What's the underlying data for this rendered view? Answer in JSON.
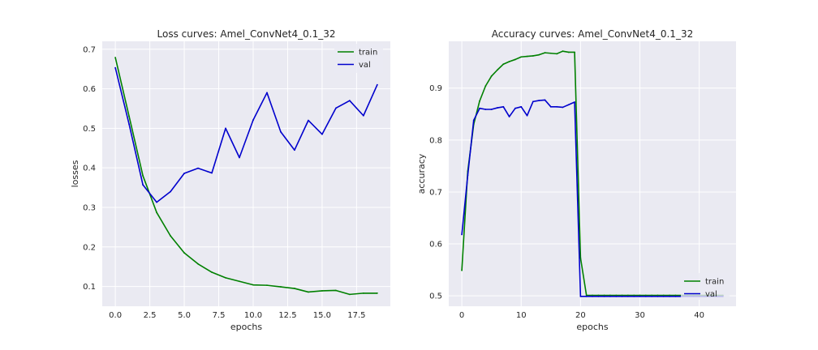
{
  "chart_data": [
    {
      "type": "line",
      "title": "Loss curves: Amel_ConvNet4_0.1_32",
      "xlabel": "epochs",
      "ylabel": "losses",
      "xlim": [
        -0.95,
        19.95
      ],
      "ylim": [
        0.05,
        0.72
      ],
      "xticks": [
        0,
        2.5,
        5,
        7.5,
        10,
        12.5,
        15,
        17.5
      ],
      "xtick_labels": [
        "0.0",
        "2.5",
        "5.0",
        "7.5",
        "10.0",
        "12.5",
        "15.0",
        "17.5"
      ],
      "yticks": [
        0.1,
        0.2,
        0.3,
        0.4,
        0.5,
        0.6,
        0.7
      ],
      "ytick_labels": [
        "0.1",
        "0.2",
        "0.3",
        "0.4",
        "0.5",
        "0.6",
        "0.7"
      ],
      "grid": true,
      "legend_position": "top-right",
      "series": [
        {
          "name": "train",
          "color": "#008000",
          "x": [
            0,
            1,
            2,
            3,
            4,
            5,
            6,
            7,
            8,
            9,
            10,
            11,
            12,
            13,
            14,
            15,
            16,
            17,
            18,
            19
          ],
          "y": [
            0.679,
            0.53,
            0.38,
            0.287,
            0.228,
            0.185,
            0.157,
            0.136,
            0.122,
            0.113,
            0.104,
            0.103,
            0.099,
            0.095,
            0.086,
            0.089,
            0.09,
            0.08,
            0.083,
            0.083
          ]
        },
        {
          "name": "val",
          "color": "#0000cd",
          "x": [
            0,
            1,
            2,
            3,
            4,
            5,
            6,
            7,
            8,
            9,
            10,
            11,
            12,
            13,
            14,
            15,
            16,
            17,
            18,
            19
          ],
          "y": [
            0.653,
            0.51,
            0.357,
            0.313,
            0.34,
            0.386,
            0.399,
            0.387,
            0.5,
            0.426,
            0.521,
            0.59,
            0.491,
            0.445,
            0.52,
            0.485,
            0.551,
            0.57,
            0.532,
            0.61
          ]
        }
      ]
    },
    {
      "type": "line",
      "title": "Accuracy curves: Amel_ConvNet4_0.1_32",
      "xlabel": "epochs",
      "ylabel": "accuracy",
      "xlim": [
        -2.2,
        46.2
      ],
      "ylim": [
        0.48,
        0.99
      ],
      "xticks": [
        0,
        10,
        20,
        30,
        40
      ],
      "xtick_labels": [
        "0",
        "10",
        "20",
        "30",
        "40"
      ],
      "yticks": [
        0.5,
        0.6,
        0.7,
        0.8,
        0.9
      ],
      "ytick_labels": [
        "0.5",
        "0.6",
        "0.7",
        "0.8",
        "0.9"
      ],
      "grid": true,
      "legend_position": "lower-right",
      "series": [
        {
          "name": "train",
          "color": "#008000",
          "x": [
            0,
            1,
            2,
            3,
            4,
            5,
            6,
            7,
            8,
            9,
            10,
            11,
            12,
            13,
            14,
            15,
            16,
            17,
            18,
            19,
            20,
            21,
            22,
            23,
            24,
            25,
            26,
            27,
            28,
            29,
            30,
            31,
            32,
            33,
            34,
            35,
            36,
            37,
            38,
            39,
            40,
            41,
            42,
            43,
            44
          ],
          "y": [
            0.549,
            0.74,
            0.83,
            0.875,
            0.904,
            0.923,
            0.935,
            0.946,
            0.951,
            0.955,
            0.96,
            0.961,
            0.962,
            0.964,
            0.968,
            0.967,
            0.966,
            0.971,
            0.969,
            0.969,
            0.573,
            0.501,
            0.501,
            0.501,
            0.501,
            0.501,
            0.501,
            0.501,
            0.501,
            0.501,
            0.501,
            0.501,
            0.501,
            0.501,
            0.501,
            0.501,
            0.501,
            0.501,
            0.501,
            0.501,
            0.501,
            0.501,
            0.501,
            0.501,
            0.501
          ]
        },
        {
          "name": "val",
          "color": "#0000cd",
          "x": [
            0,
            1,
            2,
            3,
            4,
            5,
            6,
            7,
            8,
            9,
            10,
            11,
            12,
            13,
            14,
            15,
            16,
            17,
            18,
            19,
            20,
            21,
            22,
            23,
            24,
            25,
            26,
            27,
            28,
            29,
            30,
            31,
            32,
            33,
            34,
            35,
            36,
            37,
            38,
            39,
            40,
            41,
            42,
            43,
            44
          ],
          "y": [
            0.618,
            0.732,
            0.838,
            0.861,
            0.859,
            0.859,
            0.862,
            0.864,
            0.845,
            0.861,
            0.864,
            0.847,
            0.874,
            0.876,
            0.877,
            0.864,
            0.864,
            0.863,
            0.868,
            0.873,
            0.499,
            0.499,
            0.499,
            0.499,
            0.499,
            0.499,
            0.499,
            0.499,
            0.499,
            0.499,
            0.499,
            0.499,
            0.499,
            0.499,
            0.499,
            0.499,
            0.499,
            0.499,
            0.499,
            0.499,
            0.499,
            0.499,
            0.499,
            0.499,
            0.499
          ]
        }
      ]
    }
  ]
}
